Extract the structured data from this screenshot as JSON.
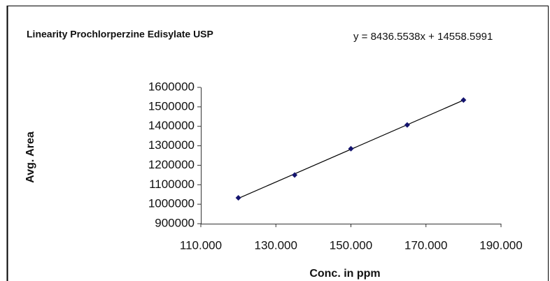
{
  "chart_data": {
    "type": "scatter",
    "title": "Linearity Prochlorperzine Edisylate USP",
    "annotation": "y = 8436.5538x + 14558.5991",
    "xlabel": "Conc. in ppm",
    "ylabel": "Avg. Area",
    "x": [
      120,
      135,
      150,
      165,
      180
    ],
    "values": [
      1033000,
      1150000,
      1285000,
      1407000,
      1535000
    ],
    "color": "#14146e",
    "trendline": true,
    "xlim": [
      110,
      190
    ],
    "xticks": [
      {
        "value": 110,
        "label": "110.000"
      },
      {
        "value": 130,
        "label": "130.000"
      },
      {
        "value": 150,
        "label": "150.000"
      },
      {
        "value": 170,
        "label": "170.000"
      },
      {
        "value": 190,
        "label": "190.000"
      }
    ],
    "ylim": [
      900000,
      1600000
    ],
    "yticks": [
      900000,
      1000000,
      1100000,
      1200000,
      1300000,
      1400000,
      1500000,
      1600000
    ]
  }
}
